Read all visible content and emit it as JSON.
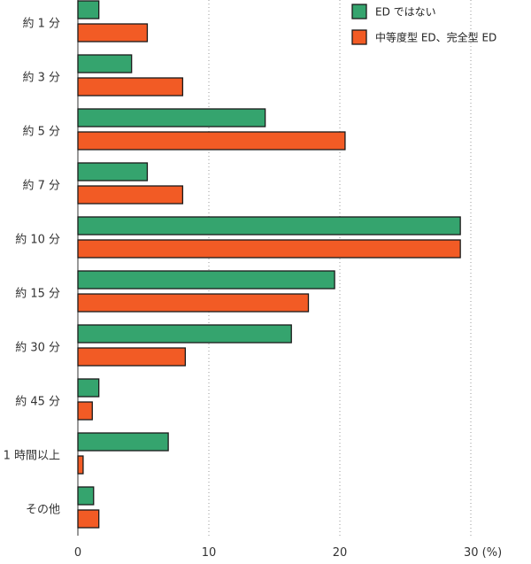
{
  "chart_data": {
    "type": "bar",
    "orientation": "horizontal",
    "categories": [
      "約 1 分",
      "約 3 分",
      "約 5 分",
      "約 7 分",
      "約 10 分",
      "約 15 分",
      "約 30 分",
      "約 45 分",
      "1 時間以上",
      "その他"
    ],
    "series": [
      {
        "name": "ED ではない",
        "color": "#35a46e",
        "values": [
          1.6,
          4.1,
          14.3,
          5.3,
          29.2,
          19.6,
          16.3,
          1.6,
          6.9,
          1.2
        ]
      },
      {
        "name": "中等度型 ED、完全型 ED",
        "color": "#f25b25",
        "values": [
          5.3,
          8.0,
          20.4,
          8.0,
          29.2,
          17.6,
          8.2,
          1.1,
          0.4,
          1.6
        ]
      }
    ],
    "xlim": [
      0,
      30
    ],
    "xticks": [
      0,
      10,
      20,
      30
    ],
    "x_tick_labels": [
      "0",
      "10",
      "20",
      "30 (%)"
    ],
    "grid": "vertical-dotted",
    "legend_position": "top-right"
  }
}
